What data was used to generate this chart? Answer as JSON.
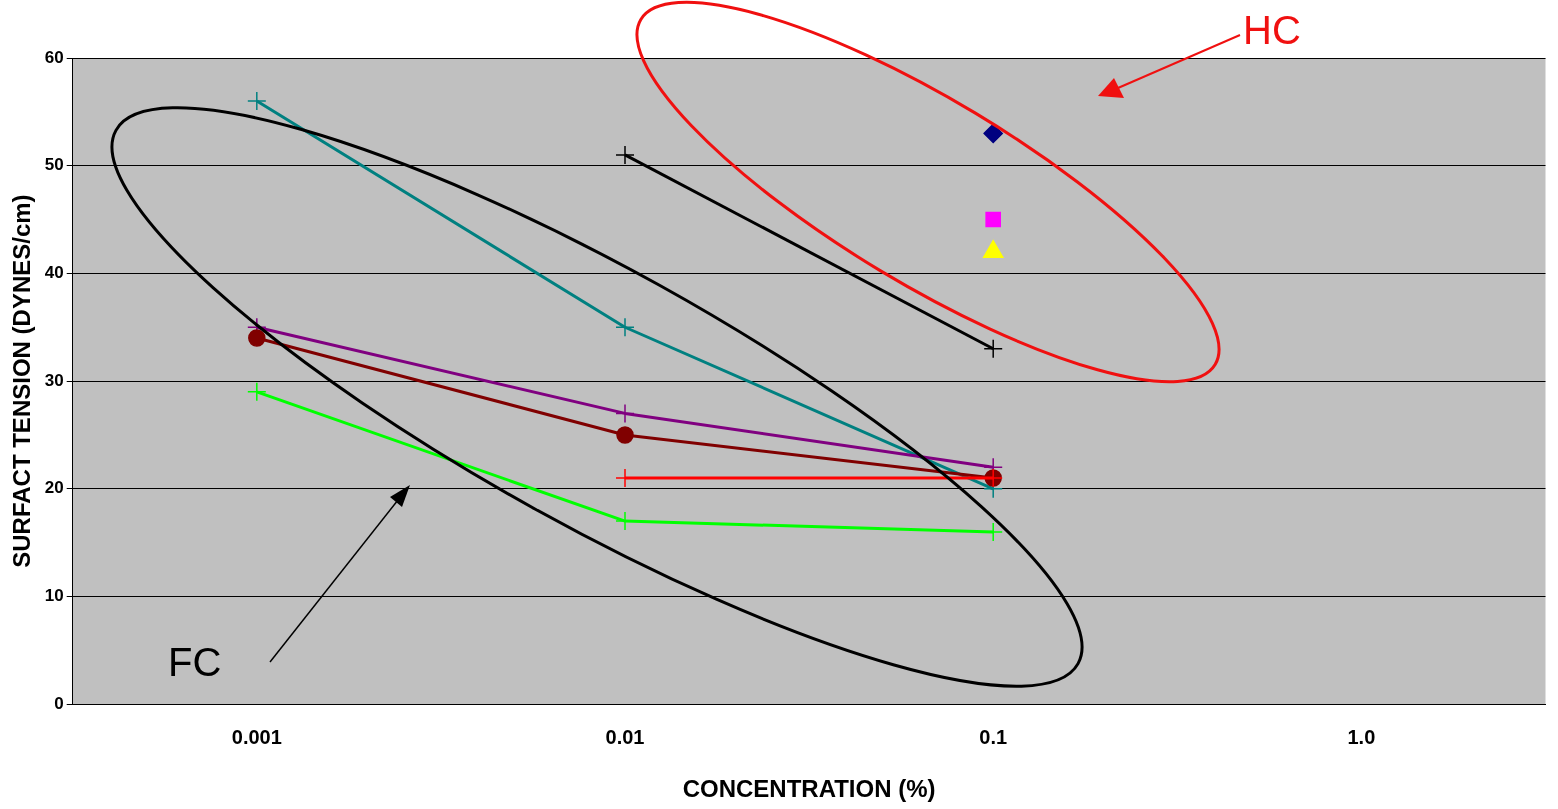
{
  "chart_data": {
    "type": "line",
    "xlabel": "CONCENTRATION (%)",
    "ylabel": "SURFACT TENSION (DYNES/cm)",
    "categories": [
      "0.001",
      "0.01",
      "0.1",
      "1.0"
    ],
    "series": [
      {
        "color": "#008080",
        "marker": "cross",
        "values": [
          56,
          35,
          20,
          null
        ]
      },
      {
        "color": "#000000",
        "marker": "cross",
        "values": [
          null,
          51,
          33,
          null
        ]
      },
      {
        "color": "#800080",
        "marker": "cross",
        "values": [
          35,
          27,
          22,
          null
        ]
      },
      {
        "color": "#800000",
        "marker": "circle",
        "values": [
          34,
          25,
          21,
          null
        ]
      },
      {
        "color": "#ff0000",
        "marker": "cross",
        "values": [
          null,
          21,
          21,
          null
        ]
      },
      {
        "color": "#00ff00",
        "marker": "cross",
        "values": [
          29,
          17,
          16,
          null
        ]
      },
      {
        "color": "#000080",
        "marker": "diamond",
        "values": [
          null,
          null,
          53,
          null
        ]
      },
      {
        "color": "#ff00ff",
        "marker": "square",
        "values": [
          null,
          null,
          45,
          null
        ]
      },
      {
        "color": "#ffff00",
        "marker": "triangle",
        "values": [
          null,
          null,
          42,
          null
        ]
      }
    ],
    "ylim": [
      0,
      60
    ],
    "yticks": [
      0,
      10,
      20,
      30,
      40,
      50,
      60
    ],
    "grid": "y",
    "legend": false,
    "annotations": [
      "HC",
      "FC"
    ]
  }
}
